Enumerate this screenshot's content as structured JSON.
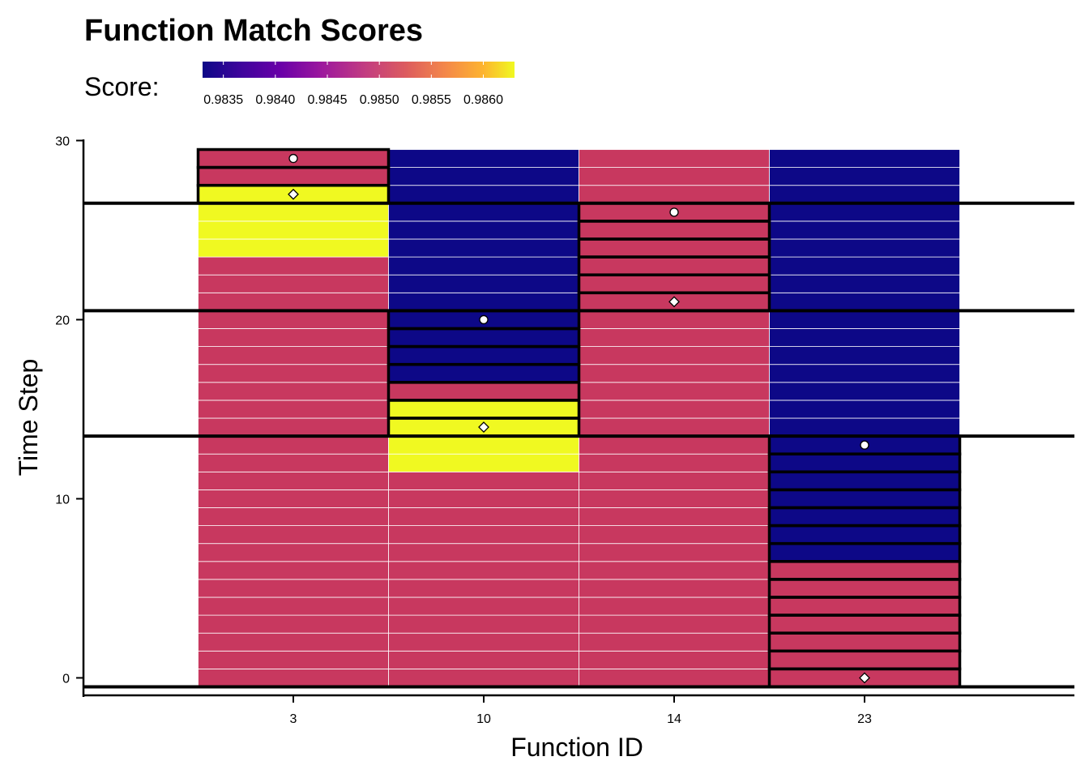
{
  "chart_data": {
    "type": "heatmap",
    "title": "Function Match Scores",
    "xlabel": "Function ID",
    "ylabel": "Time Step",
    "x_categories": [
      "3",
      "10",
      "14",
      "23"
    ],
    "ylim": [
      -0.5,
      29.5
    ],
    "y_ticks": [
      0,
      10,
      20,
      30
    ],
    "legend": {
      "title": "Score:",
      "position": "top",
      "range": [
        0.9833,
        0.9863
      ],
      "ticks": [
        0.9835,
        0.984,
        0.9845,
        0.985,
        0.9855,
        0.986
      ],
      "tick_labels": [
        "0.9835",
        "0.9840",
        "0.9845",
        "0.9850",
        "0.9855",
        "0.9860"
      ]
    },
    "colors": {
      "low": "#0d0887",
      "mid": "#c8385f",
      "high": "#f0f921",
      "cell_border": "#ffffff",
      "highlight_border": "#000000"
    },
    "series": [
      {
        "function": "3",
        "segments": [
          {
            "from": 0,
            "to": 23,
            "score": 0.985
          },
          {
            "from": 24,
            "to": 27,
            "score": 0.9862
          },
          {
            "from": 28,
            "to": 29,
            "score": 0.985
          }
        ],
        "highlight_rows": [
          27,
          28,
          29
        ],
        "circle_marker_y": 29,
        "diamond_marker_y": 27
      },
      {
        "function": "10",
        "segments": [
          {
            "from": 0,
            "to": 11,
            "score": 0.985
          },
          {
            "from": 12,
            "to": 15,
            "score": 0.9862
          },
          {
            "from": 16,
            "to": 16,
            "score": 0.985
          },
          {
            "from": 17,
            "to": 29,
            "score": 0.9834
          }
        ],
        "highlight_rows": [
          14,
          15,
          16,
          17,
          18,
          19,
          20
        ],
        "circle_marker_y": 20,
        "diamond_marker_y": 14
      },
      {
        "function": "14",
        "segments": [
          {
            "from": 0,
            "to": 29,
            "score": 0.985
          }
        ],
        "highlight_rows": [
          21,
          22,
          23,
          24,
          25,
          26
        ],
        "circle_marker_y": 26,
        "diamond_marker_y": 21
      },
      {
        "function": "23",
        "segments": [
          {
            "from": 0,
            "to": 6,
            "score": 0.985
          },
          {
            "from": 7,
            "to": 29,
            "score": 0.9834
          }
        ],
        "highlight_rows": [
          0,
          1,
          2,
          3,
          4,
          5,
          6,
          7,
          8,
          9,
          10,
          11,
          12,
          13
        ],
        "circle_marker_y": 13,
        "diamond_marker_y": 0
      }
    ],
    "boundary_lines_y": [
      -0.5,
      13.5,
      20.5,
      26.5
    ]
  }
}
